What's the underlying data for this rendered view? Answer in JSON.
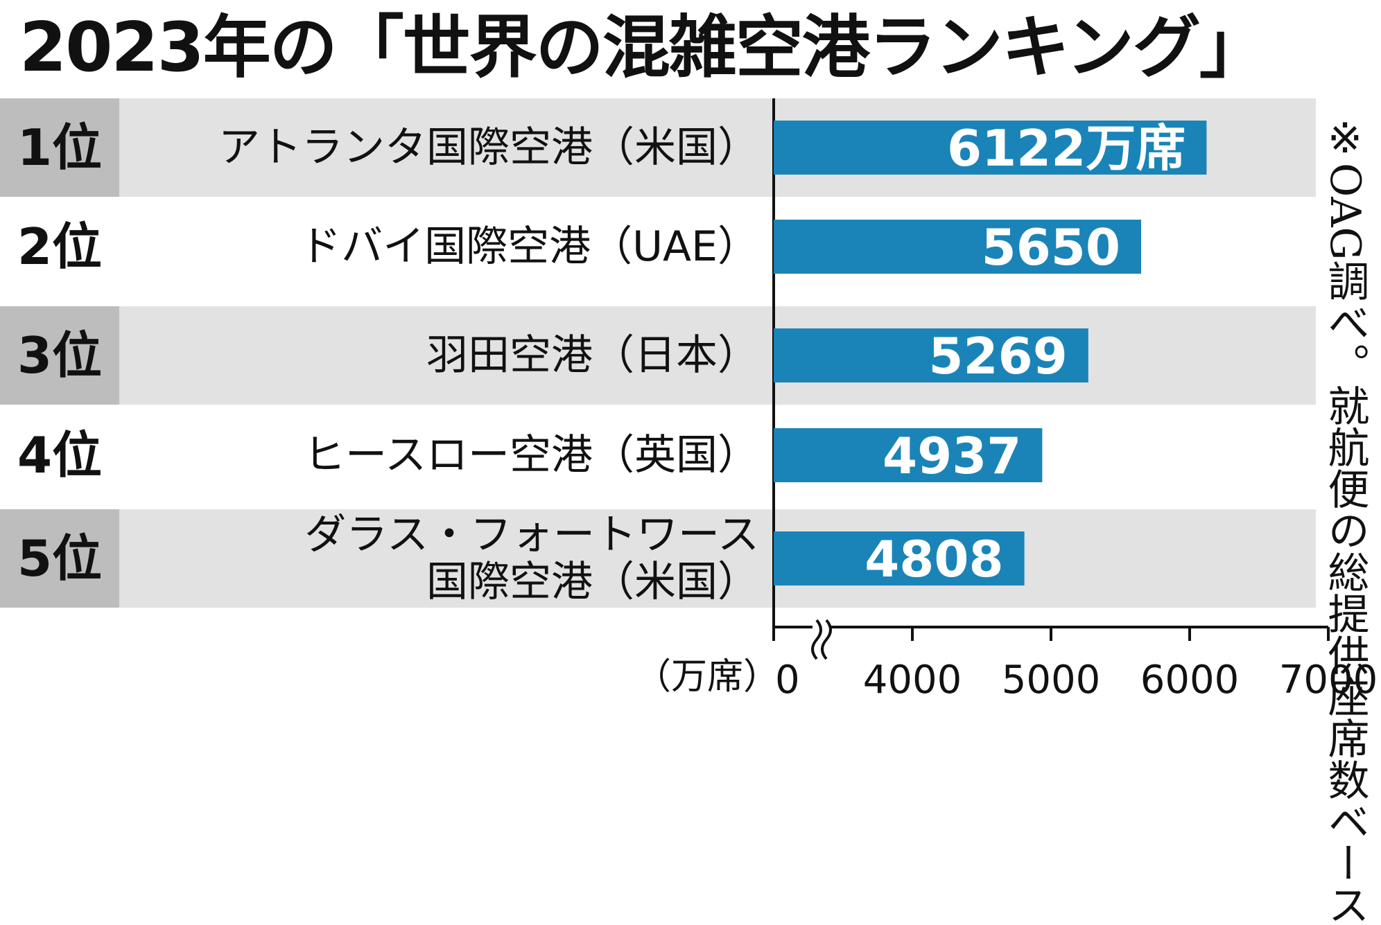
{
  "title": "2023年の「世界の混雑空港ランキング」",
  "note": "※OAG調べ。就航便の総提供座席数ベース",
  "unit_label": "（万席）",
  "colors": {
    "bar": "#1a84b8",
    "row_shade": "#e2e2e2",
    "rank_shade": "#bdbdbd",
    "axis": "#111111"
  },
  "rows": [
    {
      "rank": "1位",
      "name_lines": [
        "アトランタ国際空港（米国）"
      ],
      "value_label": "6122万席"
    },
    {
      "rank": "2位",
      "name_lines": [
        "ドバイ国際空港（UAE）"
      ],
      "value_label": "5650"
    },
    {
      "rank": "3位",
      "name_lines": [
        "羽田空港（日本）"
      ],
      "value_label": "5269"
    },
    {
      "rank": "4位",
      "name_lines": [
        "ヒースロー空港（英国）"
      ],
      "value_label": "4937"
    },
    {
      "rank": "5位",
      "name_lines": [
        "ダラス・フォートワース",
        "国際空港（米国）"
      ],
      "value_label": "4808"
    }
  ],
  "chart_data": {
    "type": "bar",
    "orientation": "horizontal",
    "categories": [
      "アトランタ国際空港（米国）",
      "ドバイ国際空港（UAE）",
      "羽田空港（日本）",
      "ヒースロー空港（英国）",
      "ダラス・フォートワース国際空港（米国）"
    ],
    "values": [
      6122,
      5650,
      5269,
      4937,
      4808
    ],
    "ticks": [
      "0",
      "4000",
      "5000",
      "6000",
      "7000"
    ],
    "tick_values": [
      0,
      4000,
      5000,
      6000,
      7000
    ],
    "axis_break": true,
    "xlim": [
      0,
      7000
    ]
  }
}
